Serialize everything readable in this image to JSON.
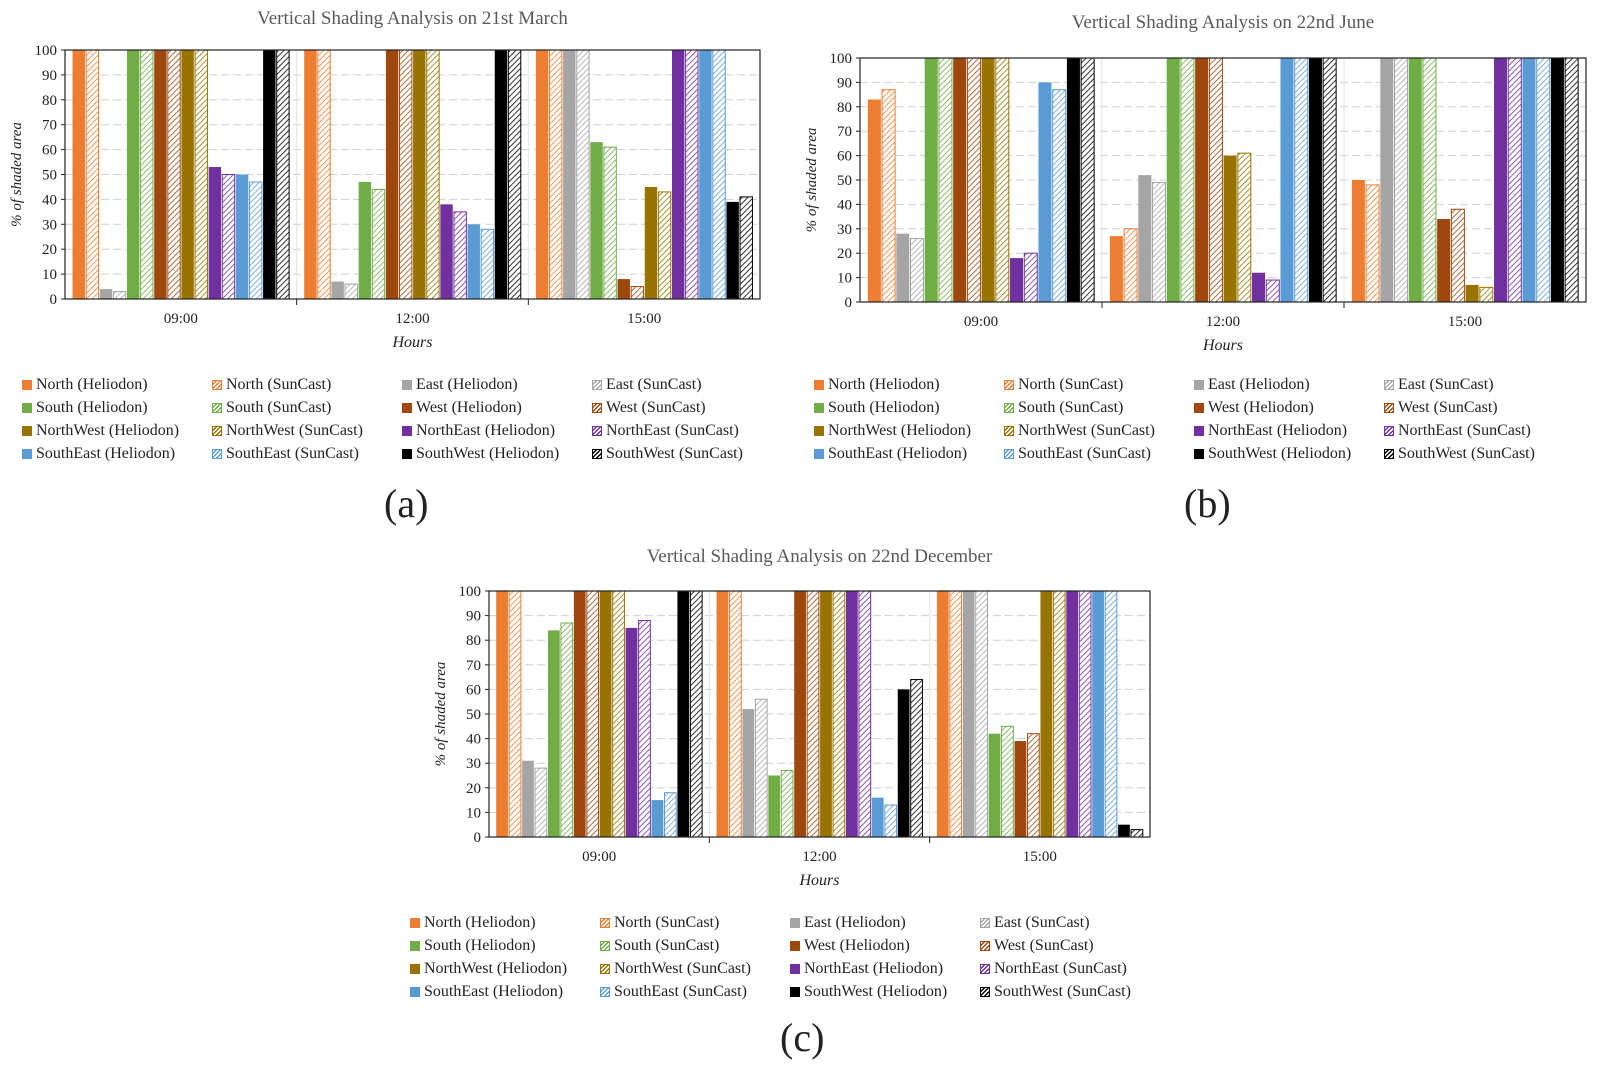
{
  "chart_data": [
    {
      "id": "a",
      "type": "bar",
      "title": "Vertical Shading Analysis on 21st March",
      "panel_label": "(a)",
      "xlabel": "Hours",
      "ylabel": "% of shaded area",
      "ylim": [
        0,
        100
      ],
      "yticks": [
        0,
        10,
        20,
        30,
        40,
        50,
        60,
        70,
        80,
        90,
        100
      ],
      "categories": [
        "09:00",
        "12:00",
        "15:00"
      ],
      "grid": true,
      "legend_position": "bottom",
      "series": [
        {
          "name": "North (Heliodon)",
          "values": [
            100,
            100,
            100
          ]
        },
        {
          "name": "North (SunCast)",
          "values": [
            100,
            100,
            100
          ]
        },
        {
          "name": "East (Heliodon)",
          "values": [
            4,
            7,
            100
          ]
        },
        {
          "name": "East (SunCast)",
          "values": [
            3,
            6,
            100
          ]
        },
        {
          "name": "South (Heliodon)",
          "values": [
            100,
            47,
            63
          ]
        },
        {
          "name": "South (SunCast)",
          "values": [
            100,
            44,
            61
          ]
        },
        {
          "name": "West (Heliodon)",
          "values": [
            100,
            100,
            8
          ]
        },
        {
          "name": "West (SunCast)",
          "values": [
            100,
            100,
            5
          ]
        },
        {
          "name": "NorthWest (Heliodon)",
          "values": [
            100,
            100,
            45
          ]
        },
        {
          "name": "NorthWest (SunCast)",
          "values": [
            100,
            100,
            43
          ]
        },
        {
          "name": "NorthEast (Heliodon)",
          "values": [
            53,
            38,
            100
          ]
        },
        {
          "name": "NorthEast (SunCast)",
          "values": [
            50,
            35,
            100
          ]
        },
        {
          "name": "SouthEast (Heliodon)",
          "values": [
            50,
            30,
            100
          ]
        },
        {
          "name": "SouthEast (SunCast)",
          "values": [
            47,
            28,
            100
          ]
        },
        {
          "name": "SouthWest (Heliodon)",
          "values": [
            100,
            100,
            39
          ]
        },
        {
          "name": "SouthWest (SunCast)",
          "values": [
            100,
            100,
            41
          ]
        }
      ]
    },
    {
      "id": "b",
      "type": "bar",
      "title": "Vertical Shading Analysis on 22nd June",
      "panel_label": "(b)",
      "xlabel": "Hours",
      "ylabel": "% of shaded area",
      "ylim": [
        0,
        100
      ],
      "yticks": [
        0,
        10,
        20,
        30,
        40,
        50,
        60,
        70,
        80,
        90,
        100
      ],
      "categories": [
        "09:00",
        "12:00",
        "15:00"
      ],
      "grid": true,
      "legend_position": "bottom",
      "series": [
        {
          "name": "North (Heliodon)",
          "values": [
            83,
            27,
            50
          ]
        },
        {
          "name": "North (SunCast)",
          "values": [
            87,
            30,
            48
          ]
        },
        {
          "name": "East (Heliodon)",
          "values": [
            28,
            52,
            100
          ]
        },
        {
          "name": "East (SunCast)",
          "values": [
            26,
            49,
            100
          ]
        },
        {
          "name": "South (Heliodon)",
          "values": [
            100,
            100,
            100
          ]
        },
        {
          "name": "South (SunCast)",
          "values": [
            100,
            100,
            100
          ]
        },
        {
          "name": "West (Heliodon)",
          "values": [
            100,
            100,
            34
          ]
        },
        {
          "name": "West (SunCast)",
          "values": [
            100,
            100,
            38
          ]
        },
        {
          "name": "NorthWest (Heliodon)",
          "values": [
            100,
            60,
            7
          ]
        },
        {
          "name": "NorthWest (SunCast)",
          "values": [
            100,
            61,
            6
          ]
        },
        {
          "name": "NorthEast (Heliodon)",
          "values": [
            18,
            12,
            100
          ]
        },
        {
          "name": "NorthEast (SunCast)",
          "values": [
            20,
            9,
            100
          ]
        },
        {
          "name": "SouthEast (Heliodon)",
          "values": [
            90,
            100,
            100
          ]
        },
        {
          "name": "SouthEast (SunCast)",
          "values": [
            87,
            100,
            100
          ]
        },
        {
          "name": "SouthWest (Heliodon)",
          "values": [
            100,
            100,
            100
          ]
        },
        {
          "name": "SouthWest (SunCast)",
          "values": [
            100,
            100,
            100
          ]
        }
      ]
    },
    {
      "id": "c",
      "type": "bar",
      "title": "Vertical Shading Analysis on 22nd December",
      "panel_label": "(c)",
      "xlabel": "Hours",
      "ylabel": "% of shaded area",
      "ylim": [
        0,
        100
      ],
      "yticks": [
        0,
        10,
        20,
        30,
        40,
        50,
        60,
        70,
        80,
        90,
        100
      ],
      "categories": [
        "09:00",
        "12:00",
        "15:00"
      ],
      "grid": true,
      "legend_position": "bottom",
      "series": [
        {
          "name": "North (Heliodon)",
          "values": [
            100,
            100,
            100
          ]
        },
        {
          "name": "North (SunCast)",
          "values": [
            100,
            100,
            100
          ]
        },
        {
          "name": "East (Heliodon)",
          "values": [
            31,
            52,
            100
          ]
        },
        {
          "name": "East (SunCast)",
          "values": [
            28,
            56,
            100
          ]
        },
        {
          "name": "South (Heliodon)",
          "values": [
            84,
            25,
            42
          ]
        },
        {
          "name": "South (SunCast)",
          "values": [
            87,
            27,
            45
          ]
        },
        {
          "name": "West (Heliodon)",
          "values": [
            100,
            100,
            39
          ]
        },
        {
          "name": "West (SunCast)",
          "values": [
            100,
            100,
            42
          ]
        },
        {
          "name": "NorthWest (Heliodon)",
          "values": [
            100,
            100,
            100
          ]
        },
        {
          "name": "NorthWest (SunCast)",
          "values": [
            100,
            100,
            100
          ]
        },
        {
          "name": "NorthEast (Heliodon)",
          "values": [
            85,
            100,
            100
          ]
        },
        {
          "name": "NorthEast (SunCast)",
          "values": [
            88,
            100,
            100
          ]
        },
        {
          "name": "SouthEast (Heliodon)",
          "values": [
            15,
            16,
            100
          ]
        },
        {
          "name": "SouthEast (SunCast)",
          "values": [
            18,
            13,
            100
          ]
        },
        {
          "name": "SouthWest (Heliodon)",
          "values": [
            100,
            60,
            5
          ]
        },
        {
          "name": "SouthWest (SunCast)",
          "values": [
            100,
            64,
            3
          ]
        }
      ]
    }
  ],
  "series_colors": {
    "North": "#ED7D31",
    "East": "#A5A5A5",
    "South": "#70AD47",
    "West": "#9E480E",
    "NorthWest": "#997300",
    "NorthEast": "#7030A0",
    "SouthEast": "#5B9BD5",
    "SouthWest": "#000000"
  },
  "series_styles": {
    "Heliodon": "solid",
    "SunCast": "hatched"
  }
}
